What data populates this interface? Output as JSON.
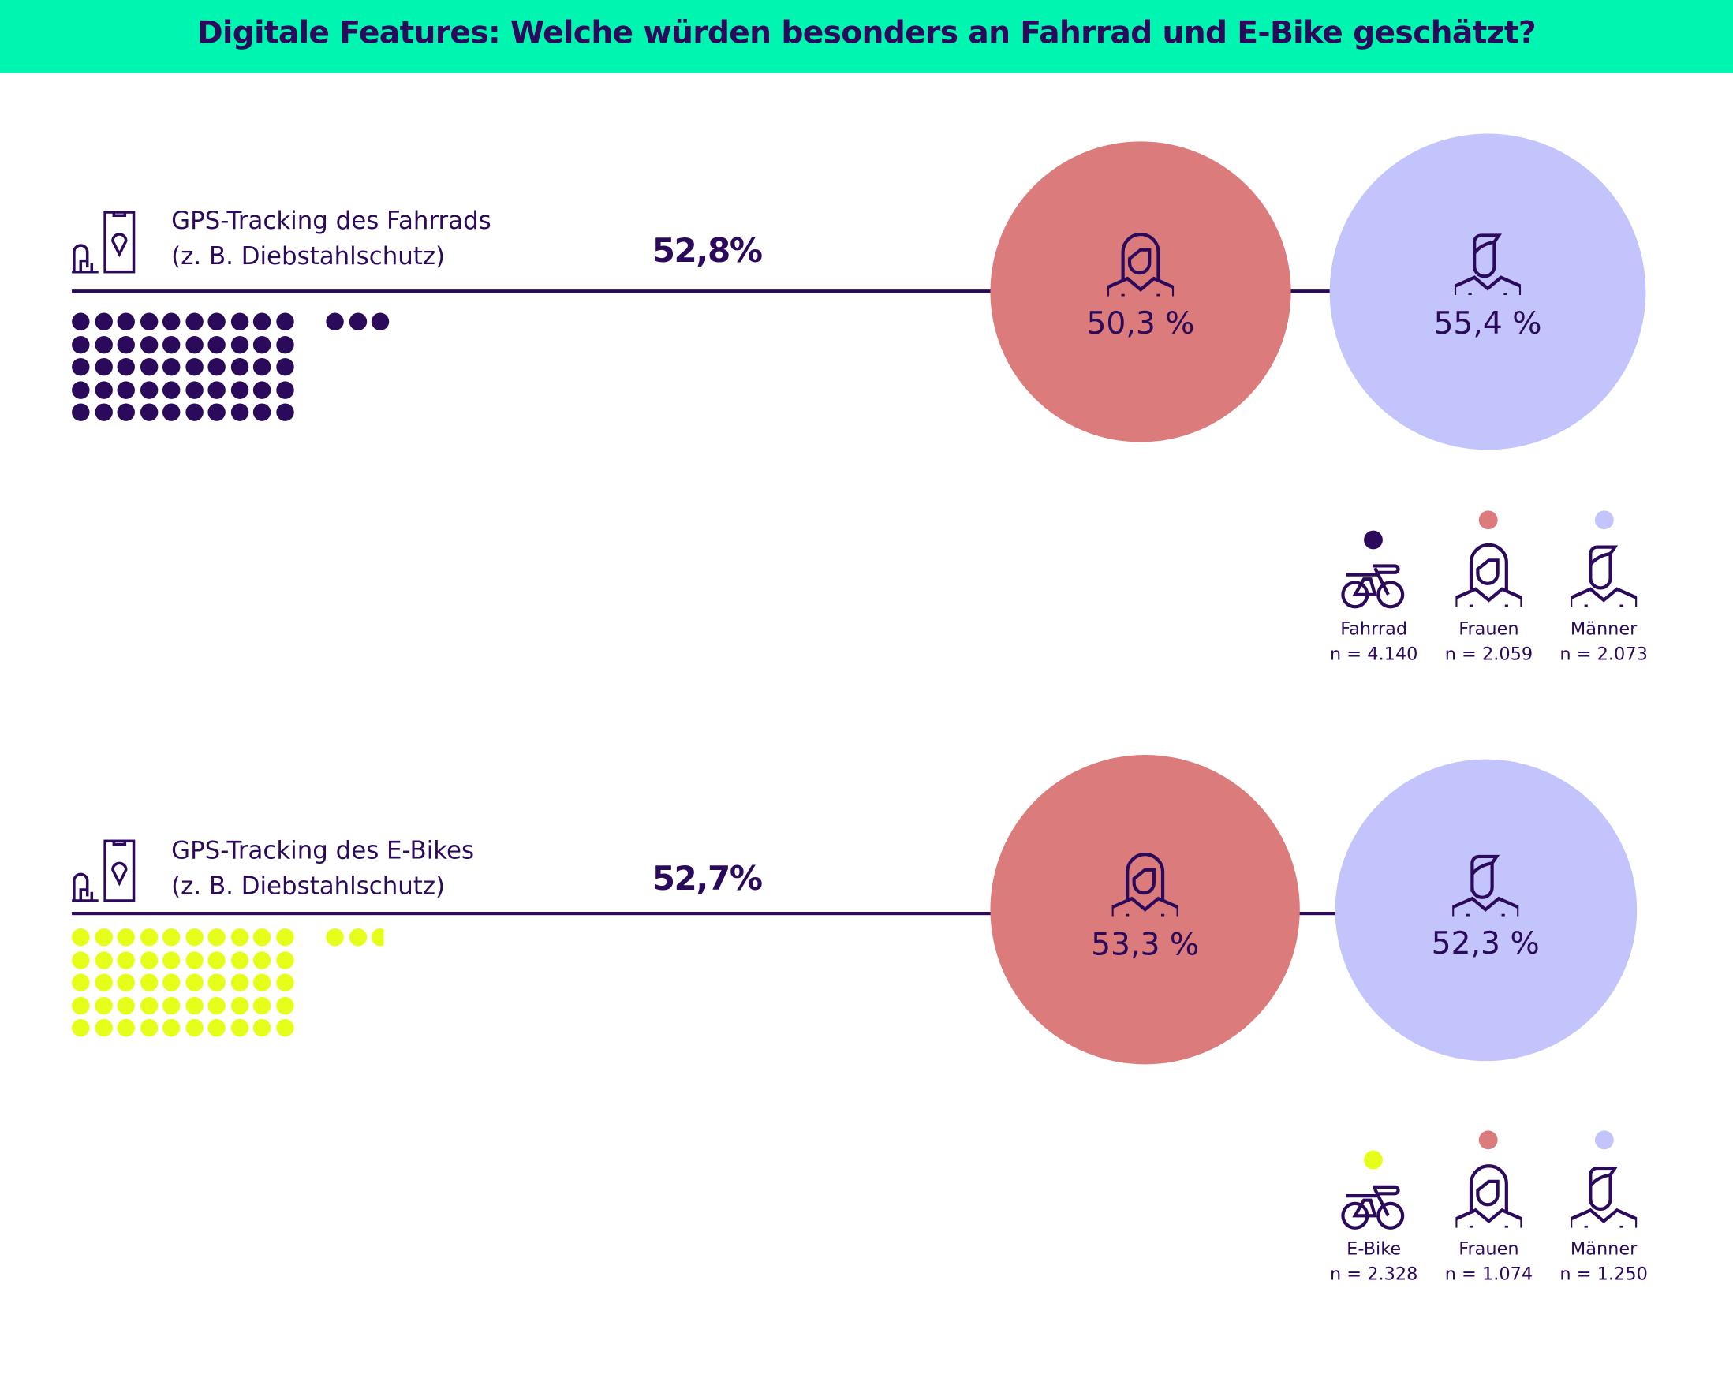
{
  "title": "Digitale Features: Welche würden besonders an Fahrrad und E-Bike geschätzt?",
  "colors": {
    "header_bg": "#00f5b0",
    "text": "#2b0a5c",
    "frauen": "#db7b7b",
    "maenner": "#c2c4fb",
    "fahrrad": "#2b0a5c",
    "ebike": "#e6ff1a"
  },
  "chart_data": [
    {
      "type": "waffle",
      "title": "GPS-Tracking des Fahrrads",
      "subtitle": "(z. B. Diebstahlschutz)",
      "total_label": "52,8%",
      "total_value": 52.8,
      "frauen": {
        "label": "50,3 %",
        "value": 50.3
      },
      "maenner": {
        "label": "55,4 %",
        "value": 55.4
      },
      "legend": [
        {
          "label": "Fahrrad",
          "n": "n = 4.140",
          "icon": "bicycle-icon"
        },
        {
          "label": "Frauen",
          "n": "n = 2.059",
          "icon": "woman-icon"
        },
        {
          "label": "Männer",
          "n": "n = 2.073",
          "icon": "man-icon"
        }
      ]
    },
    {
      "type": "waffle",
      "title": "GPS-Tracking des E-Bikes",
      "subtitle": "(z. B. Diebstahlschutz)",
      "total_label": "52,7%",
      "total_value": 52.7,
      "frauen": {
        "label": "53,3 %",
        "value": 53.3
      },
      "maenner": {
        "label": "52,3 %",
        "value": 52.3
      },
      "legend": [
        {
          "label": "E-Bike",
          "n": "n = 2.328",
          "icon": "ebike-icon"
        },
        {
          "label": "Frauen",
          "n": "n = 1.074",
          "icon": "woman-icon"
        },
        {
          "label": "Männer",
          "n": "n = 1.250",
          "icon": "man-icon"
        }
      ]
    }
  ]
}
